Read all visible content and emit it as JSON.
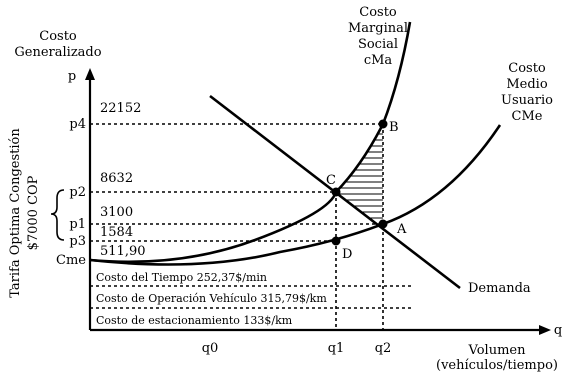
{
  "axes": {
    "y_title_line1": "Costo",
    "y_title_line2": "Generalizado",
    "y_symbol": "p",
    "x_symbol": "q",
    "x_title_line1": "Volumen",
    "x_title_line2": "(vehículos/tiempo)"
  },
  "y_ticks": {
    "p4": "p4",
    "p2": "p2",
    "p1": "p1",
    "p3": "p3",
    "cme": "Cme"
  },
  "x_ticks": {
    "q0": "q0",
    "q1": "q1",
    "q2": "q2"
  },
  "values": {
    "v22152": "22152",
    "v8632": "8632",
    "v3100": "3100",
    "v1584": "1584",
    "v51190": "511,90"
  },
  "curves": {
    "marginal_line1": "Costo",
    "marginal_line2": "Marginal",
    "marginal_line3": "Social",
    "marginal_line4": "cMa",
    "average_line1": "Costo",
    "average_line2": "Medio",
    "average_line3": "Usuario",
    "average_line4": "CMe",
    "demand": "Demanda"
  },
  "points": {
    "a": "A",
    "b": "B",
    "c": "C",
    "d": "D"
  },
  "side_label": {
    "line1": "Tarifa Optima Congestión",
    "line2": "$7000 COP"
  },
  "components": {
    "tiempo": "Costo del Tiempo  252,37$/min",
    "operacion": "Costo de Operación Vehículo 315,79$/km",
    "estacionamiento": "Costo de estacionamiento 133$/km"
  }
}
